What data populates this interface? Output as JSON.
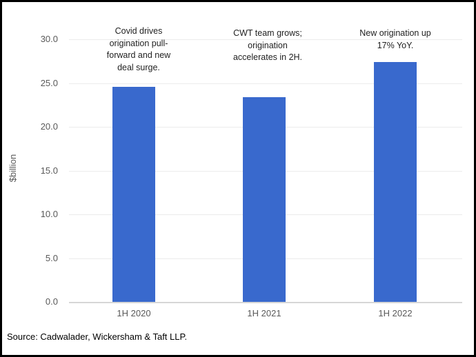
{
  "chart_data": {
    "type": "bar",
    "categories": [
      "1H 2020",
      "1H 2021",
      "1H 2022"
    ],
    "values": [
      24.6,
      23.4,
      27.4
    ],
    "title": "",
    "xlabel": "",
    "ylabel": "$billion",
    "ylim": [
      0,
      30
    ],
    "ytick_step": 5,
    "yticks": [
      "30.0",
      "25.0",
      "20.0",
      "15.0",
      "10.0",
      "5.0",
      "0.0"
    ],
    "grid": true,
    "legend": "none",
    "bar_color": "#3969cd",
    "annotations": [
      "Covid drives\norigination pull-\nforward and new\ndeal surge.",
      "CWT team grows;\norigination\naccelerates in 2H.",
      "New origination up\n17% YoY."
    ]
  },
  "source_note": "Source: Cadwalader, Wickersham & Taft LLP."
}
